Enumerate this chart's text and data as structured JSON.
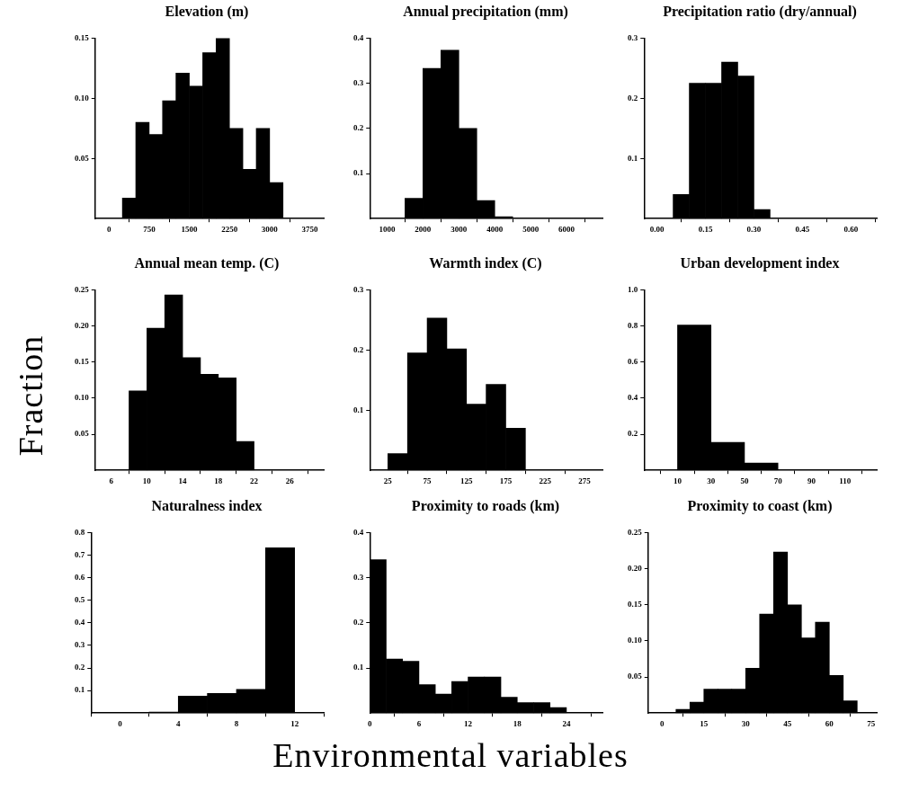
{
  "chart_data": [
    {
      "type": "histogram",
      "title": "Elevation (m)",
      "color": "#000000",
      "bins": [
        250,
        500,
        750,
        1000,
        1250,
        1500,
        1750,
        2000,
        2250,
        2500,
        2750,
        3000,
        3250
      ],
      "values": [
        0.017,
        0.08,
        0.07,
        0.098,
        0.121,
        0.11,
        0.138,
        0.15,
        0.075,
        0.041,
        0.075,
        0.03
      ],
      "xlim": [
        -260,
        4010
      ],
      "ylim": [
        0,
        0.15
      ],
      "xticks": [
        0,
        750,
        1500,
        2250,
        3000,
        3750
      ],
      "yticks": [
        {
          "value": 0.05,
          "label": "0.05"
        },
        {
          "value": 0.1,
          "label": "0.10"
        },
        {
          "value": 0.15,
          "label": "0.15"
        }
      ]
    },
    {
      "type": "histogram",
      "title": "Annual precipitation (mm)",
      "color": "#000000",
      "bins": [
        1500,
        2000,
        2500,
        3000,
        3500,
        4000,
        4500
      ],
      "values": [
        0.045,
        0.333,
        0.373,
        0.2,
        0.04,
        0.004
      ],
      "xlim": [
        520,
        7000
      ],
      "ylim": [
        0,
        0.4
      ],
      "xticks": [
        1000,
        2000,
        3000,
        4000,
        5000,
        6000
      ],
      "yticks": [
        0.1,
        0.2,
        0.3,
        0.4
      ]
    },
    {
      "type": "histogram",
      "title": "Precipitation ratio (dry/annual)",
      "color": "#000000",
      "bins": [
        0.05,
        0.1,
        0.15,
        0.2,
        0.25,
        0.3,
        0.35
      ],
      "values": [
        0.04,
        0.225,
        0.225,
        0.26,
        0.237,
        0.015
      ],
      "xlim": [
        -0.04,
        0.68
      ],
      "ylim": [
        0,
        0.3
      ],
      "xticks": [
        {
          "value": 0,
          "label": "0.00"
        },
        {
          "value": 0.15,
          "label": "0.15"
        },
        {
          "value": 0.3,
          "label": "0.30"
        },
        {
          "value": 0.45,
          "label": "0.45"
        },
        {
          "value": 0.6,
          "label": "0.60"
        }
      ],
      "yticks": [
        0.1,
        0.2,
        0.3
      ]
    },
    {
      "type": "histogram",
      "title": "Annual mean temp. (C)",
      "ylabel": "Fraction",
      "color": "#000000",
      "bins": [
        8,
        10,
        12,
        14,
        16,
        18,
        20,
        22
      ],
      "values": [
        0.11,
        0.197,
        0.243,
        0.156,
        0.133,
        0.128,
        0.04
      ],
      "xlim": [
        4.2,
        29.8
      ],
      "ylim": [
        0,
        0.25
      ],
      "xticks": [
        6,
        10,
        14,
        18,
        22,
        26
      ],
      "yticks": [
        {
          "value": 0.05,
          "label": "0.05"
        },
        {
          "value": 0.1,
          "label": "0.10"
        },
        {
          "value": 0.15,
          "label": "0.15"
        },
        {
          "value": 0.2,
          "label": "0.20"
        },
        {
          "value": 0.25,
          "label": "0.25"
        }
      ]
    },
    {
      "type": "histogram",
      "title": "Warmth index (C)",
      "color": "#000000",
      "bins": [
        25,
        50,
        75,
        100,
        125,
        150,
        175,
        200
      ],
      "values": [
        0.028,
        0.195,
        0.253,
        0.202,
        0.11,
        0.143,
        0.07
      ],
      "xlim": [
        2,
        298
      ],
      "ylim": [
        0,
        0.3
      ],
      "xticks": [
        25,
        75,
        125,
        175,
        225,
        275
      ],
      "yticks": [
        0.1,
        0.2,
        0.3
      ]
    },
    {
      "type": "histogram",
      "title": "Urban development index",
      "color": "#000000",
      "bins": [
        10,
        30,
        50,
        70
      ],
      "values": [
        0.805,
        0.155,
        0.04
      ],
      "xlim": [
        -10,
        129
      ],
      "ylim": [
        0,
        1
      ],
      "xticks": [
        10,
        30,
        50,
        70,
        90,
        110
      ],
      "yticks": [
        0.2,
        0.4,
        0.6,
        0.8,
        {
          "value": 1,
          "label": "1.0"
        }
      ]
    },
    {
      "type": "histogram",
      "title": "Naturalness index",
      "color": "#000000",
      "bins": [
        2,
        4,
        6,
        8,
        10,
        12
      ],
      "values": [
        0.004,
        0.075,
        0.087,
        0.105,
        0.733
      ],
      "xlim": [
        -2,
        14
      ],
      "ylim": [
        0,
        0.8
      ],
      "xticks": [
        0,
        4,
        8,
        12
      ],
      "yticks": [
        0.1,
        0.2,
        0.3,
        0.4,
        0.5,
        0.6,
        0.7,
        0.8
      ]
    },
    {
      "type": "histogram",
      "title": "Proximity to roads (km)",
      "xlabel": "Environmental variables",
      "color": "#000000",
      "bins": [
        0,
        2,
        4,
        6,
        8,
        10,
        12,
        14,
        16,
        18,
        20,
        22,
        24
      ],
      "values": [
        0.34,
        0.12,
        0.115,
        0.063,
        0.042,
        0.07,
        0.08,
        0.08,
        0.035,
        0.023,
        0.023,
        0.012
      ],
      "xlim": [
        0,
        28.4
      ],
      "ylim": [
        0,
        0.4
      ],
      "xticks": [
        0,
        6,
        12,
        18,
        24
      ],
      "yticks": [
        0.1,
        0.2,
        0.3,
        0.4
      ]
    },
    {
      "type": "histogram",
      "title": "Proximity to coast (km)",
      "color": "#000000",
      "bins": [
        5,
        10,
        15,
        20,
        25,
        30,
        35,
        40,
        45,
        50,
        55,
        60,
        65,
        70
      ],
      "values": [
        0.005,
        0.015,
        0.033,
        0.033,
        0.033,
        0.062,
        0.137,
        0.223,
        0.15,
        0.104,
        0.126,
        0.052,
        0.017
      ],
      "xlim": [
        -5,
        77
      ],
      "ylim": [
        0,
        0.25
      ],
      "xticks": [
        0,
        15,
        30,
        45,
        60,
        75
      ],
      "yticks": [
        {
          "value": 0.05,
          "label": "0.05"
        },
        {
          "value": 0.1,
          "label": "0.10"
        },
        {
          "value": 0.15,
          "label": "0.15"
        },
        {
          "value": 0.2,
          "label": "0.20"
        },
        {
          "value": 0.25,
          "label": "0.25"
        }
      ]
    }
  ]
}
